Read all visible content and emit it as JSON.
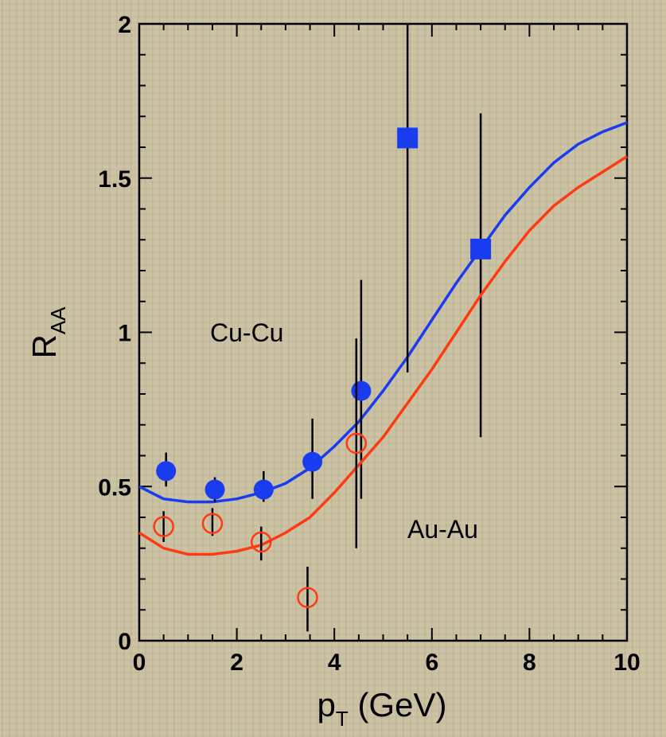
{
  "chart_data": {
    "type": "scatter",
    "title": "",
    "xlabel": {
      "main": "p",
      "sub": "T",
      "rest": " (GeV)"
    },
    "ylabel": {
      "main": "R",
      "sub": "AA"
    },
    "xlim": [
      0,
      10
    ],
    "ylim": [
      0,
      2
    ],
    "x_ticks": [
      0,
      2,
      4,
      6,
      8,
      10
    ],
    "y_ticks": [
      0,
      0.5,
      1,
      1.5,
      2
    ],
    "x_tick_labels": [
      "0",
      "2",
      "4",
      "6",
      "8",
      "10"
    ],
    "y_tick_labels": [
      "0",
      "0.5",
      "1",
      "1.5",
      "2"
    ],
    "series": [
      {
        "name": "Cu-Cu",
        "color": "#1a3cf0",
        "marker": "filled",
        "points": [
          {
            "x": 0.55,
            "y": 0.55,
            "lo": 0.5,
            "hi": 0.61,
            "shape": "circle"
          },
          {
            "x": 1.55,
            "y": 0.49,
            "lo": 0.45,
            "hi": 0.53,
            "shape": "circle"
          },
          {
            "x": 2.55,
            "y": 0.49,
            "lo": 0.45,
            "hi": 0.55,
            "shape": "circle"
          },
          {
            "x": 3.55,
            "y": 0.58,
            "lo": 0.46,
            "hi": 0.72,
            "shape": "circle"
          },
          {
            "x": 4.55,
            "y": 0.81,
            "lo": 0.46,
            "hi": 1.17,
            "shape": "circle"
          },
          {
            "x": 5.5,
            "y": 1.63,
            "lo": 0.87,
            "hi": 2.0,
            "shape": "square"
          },
          {
            "x": 7.0,
            "y": 1.27,
            "lo": 0.66,
            "hi": 1.71,
            "shape": "square"
          }
        ],
        "curve": [
          [
            0,
            0.5
          ],
          [
            0.5,
            0.46
          ],
          [
            1,
            0.45
          ],
          [
            1.5,
            0.45
          ],
          [
            2,
            0.46
          ],
          [
            2.5,
            0.48
          ],
          [
            3,
            0.51
          ],
          [
            3.5,
            0.56
          ],
          [
            4,
            0.63
          ],
          [
            4.5,
            0.71
          ],
          [
            5,
            0.81
          ],
          [
            5.5,
            0.92
          ],
          [
            6,
            1.04
          ],
          [
            6.5,
            1.16
          ],
          [
            7,
            1.27
          ],
          [
            7.5,
            1.38
          ],
          [
            8,
            1.47
          ],
          [
            8.5,
            1.55
          ],
          [
            9,
            1.61
          ],
          [
            9.5,
            1.65
          ],
          [
            10,
            1.68
          ]
        ]
      },
      {
        "name": "Au-Au",
        "color": "#ff3a12",
        "marker": "open",
        "points": [
          {
            "x": 0.5,
            "y": 0.37,
            "lo": 0.32,
            "hi": 0.42,
            "shape": "circle"
          },
          {
            "x": 1.5,
            "y": 0.38,
            "lo": 0.34,
            "hi": 0.43,
            "shape": "circle"
          },
          {
            "x": 2.5,
            "y": 0.32,
            "lo": 0.26,
            "hi": 0.37,
            "shape": "circle"
          },
          {
            "x": 3.45,
            "y": 0.14,
            "lo": 0.03,
            "hi": 0.24,
            "shape": "circle"
          },
          {
            "x": 4.45,
            "y": 0.64,
            "lo": 0.3,
            "hi": 0.98,
            "shape": "circle"
          }
        ],
        "curve": [
          [
            0,
            0.35
          ],
          [
            0.5,
            0.3
          ],
          [
            1,
            0.28
          ],
          [
            1.5,
            0.28
          ],
          [
            2,
            0.29
          ],
          [
            2.5,
            0.31
          ],
          [
            3,
            0.35
          ],
          [
            3.5,
            0.4
          ],
          [
            4,
            0.48
          ],
          [
            4.5,
            0.57
          ],
          [
            5,
            0.66
          ],
          [
            5.5,
            0.77
          ],
          [
            6,
            0.88
          ],
          [
            6.5,
            1.0
          ],
          [
            7,
            1.12
          ],
          [
            7.5,
            1.23
          ],
          [
            8,
            1.33
          ],
          [
            8.5,
            1.41
          ],
          [
            9,
            1.47
          ],
          [
            9.5,
            1.52
          ],
          [
            10,
            1.57
          ]
        ]
      }
    ],
    "errorbar_color": "#000000"
  }
}
